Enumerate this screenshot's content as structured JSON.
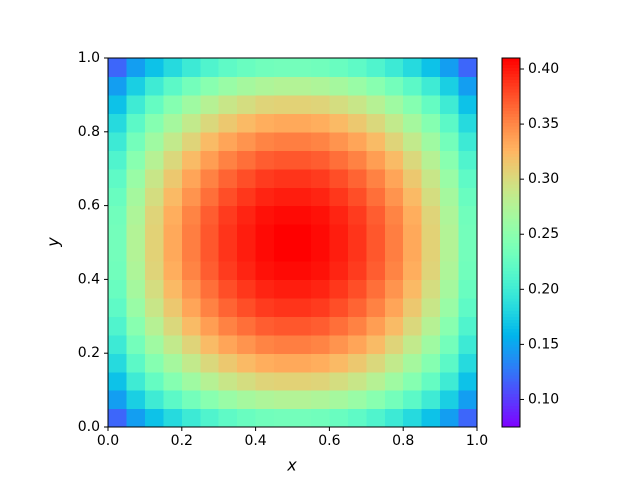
{
  "chart_data": {
    "type": "heatmap",
    "colormap": "rainbow",
    "xlabel": "x",
    "ylabel": "y",
    "xlim": [
      0,
      1
    ],
    "ylim": [
      0,
      1
    ],
    "xticks": [
      {
        "value": 0,
        "label": "0.0"
      },
      {
        "value": 0.2,
        "label": "0.2"
      },
      {
        "value": 0.4,
        "label": "0.4"
      },
      {
        "value": 0.6,
        "label": "0.6"
      },
      {
        "value": 0.8,
        "label": "0.8"
      },
      {
        "value": 1,
        "label": "1.0"
      }
    ],
    "yticks": [
      {
        "value": 0,
        "label": "0.0"
      },
      {
        "value": 0.2,
        "label": "0.2"
      },
      {
        "value": 0.4,
        "label": "0.4"
      },
      {
        "value": 0.6,
        "label": "0.6"
      },
      {
        "value": 0.8,
        "label": "0.8"
      },
      {
        "value": 1,
        "label": "1.0"
      }
    ],
    "clim": [
      0.075,
      0.41
    ],
    "cticks": [
      {
        "value": 0.1,
        "label": "0.10"
      },
      {
        "value": 0.15,
        "label": "0.15"
      },
      {
        "value": 0.2,
        "label": "0.20"
      },
      {
        "value": 0.25,
        "label": "0.25"
      },
      {
        "value": 0.3,
        "label": "0.30"
      },
      {
        "value": 0.35,
        "label": "0.35"
      },
      {
        "value": 0.4,
        "label": "0.40"
      }
    ],
    "z": [
      [
        0.119,
        0.146,
        0.167,
        0.184,
        0.199,
        0.211,
        0.221,
        0.228,
        0.233,
        0.235,
        0.235,
        0.233,
        0.228,
        0.221,
        0.211,
        0.199,
        0.184,
        0.167,
        0.146,
        0.119
      ],
      [
        0.146,
        0.176,
        0.2,
        0.219,
        0.235,
        0.248,
        0.259,
        0.267,
        0.273,
        0.276,
        0.276,
        0.273,
        0.267,
        0.259,
        0.248,
        0.235,
        0.219,
        0.2,
        0.176,
        0.146
      ],
      [
        0.167,
        0.2,
        0.225,
        0.246,
        0.263,
        0.278,
        0.29,
        0.298,
        0.305,
        0.307,
        0.307,
        0.305,
        0.298,
        0.29,
        0.278,
        0.263,
        0.246,
        0.225,
        0.2,
        0.167
      ],
      [
        0.184,
        0.219,
        0.246,
        0.267,
        0.286,
        0.302,
        0.314,
        0.323,
        0.33,
        0.333,
        0.333,
        0.33,
        0.323,
        0.314,
        0.302,
        0.286,
        0.267,
        0.246,
        0.219,
        0.184
      ],
      [
        0.199,
        0.235,
        0.263,
        0.286,
        0.305,
        0.322,
        0.335,
        0.344,
        0.352,
        0.355,
        0.355,
        0.352,
        0.344,
        0.335,
        0.322,
        0.305,
        0.286,
        0.263,
        0.235,
        0.199
      ],
      [
        0.211,
        0.248,
        0.278,
        0.302,
        0.322,
        0.339,
        0.353,
        0.362,
        0.37,
        0.373,
        0.373,
        0.37,
        0.362,
        0.353,
        0.339,
        0.322,
        0.302,
        0.278,
        0.248,
        0.211
      ],
      [
        0.221,
        0.259,
        0.29,
        0.314,
        0.335,
        0.353,
        0.367,
        0.377,
        0.385,
        0.388,
        0.388,
        0.385,
        0.377,
        0.367,
        0.353,
        0.335,
        0.314,
        0.29,
        0.259,
        0.221
      ],
      [
        0.228,
        0.267,
        0.298,
        0.323,
        0.344,
        0.362,
        0.377,
        0.387,
        0.395,
        0.398,
        0.398,
        0.395,
        0.387,
        0.377,
        0.362,
        0.344,
        0.323,
        0.298,
        0.267,
        0.228
      ],
      [
        0.233,
        0.273,
        0.305,
        0.33,
        0.352,
        0.37,
        0.385,
        0.395,
        0.403,
        0.406,
        0.406,
        0.403,
        0.395,
        0.385,
        0.37,
        0.352,
        0.33,
        0.305,
        0.273,
        0.233
      ],
      [
        0.235,
        0.276,
        0.307,
        0.333,
        0.355,
        0.373,
        0.388,
        0.398,
        0.406,
        0.41,
        0.41,
        0.406,
        0.398,
        0.388,
        0.373,
        0.355,
        0.333,
        0.307,
        0.276,
        0.235
      ],
      [
        0.235,
        0.276,
        0.307,
        0.333,
        0.355,
        0.373,
        0.388,
        0.398,
        0.406,
        0.41,
        0.41,
        0.406,
        0.398,
        0.388,
        0.373,
        0.355,
        0.333,
        0.307,
        0.276,
        0.235
      ],
      [
        0.233,
        0.273,
        0.305,
        0.33,
        0.352,
        0.37,
        0.385,
        0.395,
        0.403,
        0.406,
        0.406,
        0.403,
        0.395,
        0.385,
        0.37,
        0.352,
        0.33,
        0.305,
        0.273,
        0.233
      ],
      [
        0.228,
        0.267,
        0.298,
        0.323,
        0.344,
        0.362,
        0.377,
        0.387,
        0.395,
        0.398,
        0.398,
        0.395,
        0.387,
        0.377,
        0.362,
        0.344,
        0.323,
        0.298,
        0.267,
        0.228
      ],
      [
        0.221,
        0.259,
        0.29,
        0.314,
        0.335,
        0.353,
        0.367,
        0.377,
        0.385,
        0.388,
        0.388,
        0.385,
        0.377,
        0.367,
        0.353,
        0.335,
        0.314,
        0.29,
        0.259,
        0.221
      ],
      [
        0.211,
        0.248,
        0.278,
        0.302,
        0.322,
        0.339,
        0.353,
        0.362,
        0.37,
        0.373,
        0.373,
        0.37,
        0.362,
        0.353,
        0.339,
        0.322,
        0.302,
        0.278,
        0.248,
        0.211
      ],
      [
        0.199,
        0.235,
        0.263,
        0.286,
        0.305,
        0.322,
        0.335,
        0.344,
        0.352,
        0.355,
        0.355,
        0.352,
        0.344,
        0.335,
        0.322,
        0.305,
        0.286,
        0.263,
        0.235,
        0.199
      ],
      [
        0.184,
        0.219,
        0.246,
        0.267,
        0.286,
        0.302,
        0.314,
        0.323,
        0.33,
        0.333,
        0.333,
        0.33,
        0.323,
        0.314,
        0.302,
        0.286,
        0.267,
        0.246,
        0.219,
        0.184
      ],
      [
        0.167,
        0.2,
        0.225,
        0.246,
        0.263,
        0.278,
        0.29,
        0.298,
        0.305,
        0.307,
        0.307,
        0.305,
        0.298,
        0.29,
        0.278,
        0.263,
        0.246,
        0.225,
        0.2,
        0.167
      ],
      [
        0.146,
        0.176,
        0.2,
        0.219,
        0.235,
        0.248,
        0.259,
        0.267,
        0.273,
        0.276,
        0.276,
        0.273,
        0.267,
        0.259,
        0.248,
        0.235,
        0.219,
        0.2,
        0.176,
        0.146
      ],
      [
        0.119,
        0.146,
        0.167,
        0.184,
        0.199,
        0.211,
        0.221,
        0.228,
        0.233,
        0.235,
        0.235,
        0.233,
        0.228,
        0.221,
        0.211,
        0.199,
        0.184,
        0.167,
        0.146,
        0.119
      ]
    ]
  }
}
